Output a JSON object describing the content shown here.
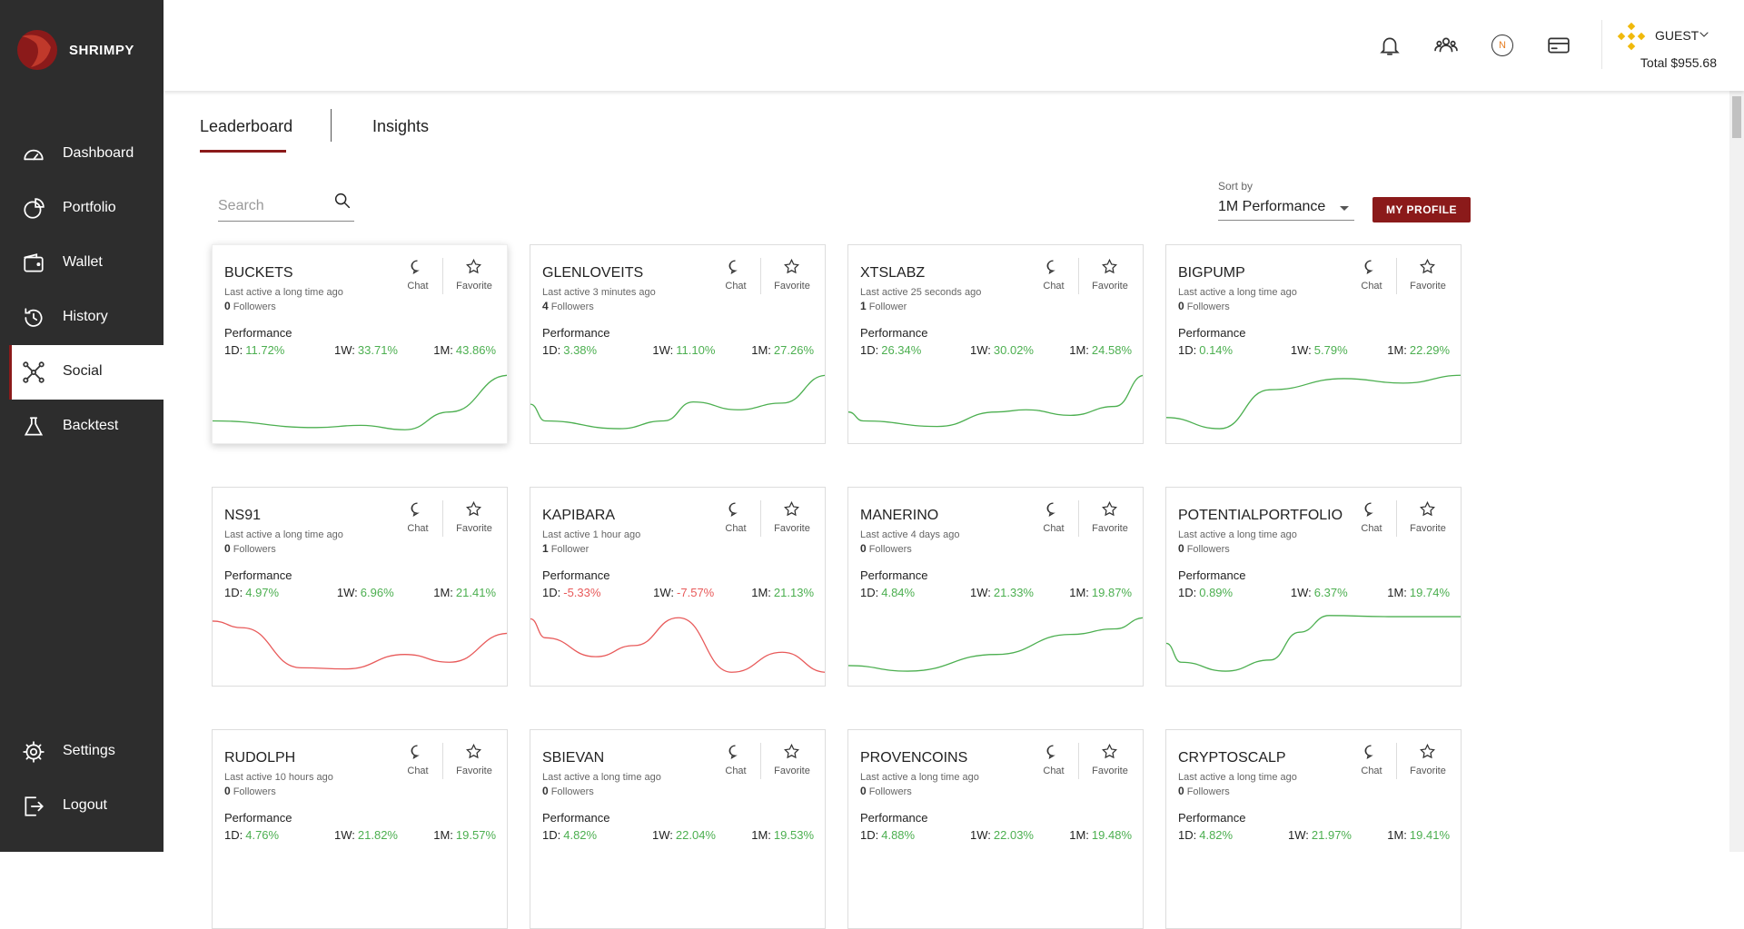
{
  "app": {
    "brand": "SHRIMPY"
  },
  "nav": [
    "Dashboard",
    "Portfolio",
    "Wallet",
    "History",
    "Social",
    "Backtest"
  ],
  "nav_bottom": [
    "Settings",
    "Logout"
  ],
  "header": {
    "avatar_initial": "N",
    "user": "GUEST",
    "total": "Total $955.68"
  },
  "tabs": [
    "Leaderboard",
    "Insights"
  ],
  "search_placeholder": "Search",
  "sort": {
    "label": "Sort by",
    "value": "1M Performance"
  },
  "my_profile": "MY PROFILE",
  "card_labels": {
    "chat": "Chat",
    "favorite": "Favorite",
    "performance": "Performance",
    "d1": "1D:",
    "w1": "1W:",
    "m1": "1M:"
  },
  "cards": [
    {
      "name": "BUCKETS",
      "last_active": "Last active a long time ago",
      "followers": "0",
      "followers_label": "Followers",
      "d1": "11.72%",
      "w1": "33.71%",
      "m1": "43.86%"
    },
    {
      "name": "GLENLOVEITS",
      "last_active": "Last active 3 minutes ago",
      "followers": "4",
      "followers_label": "Followers",
      "d1": "3.38%",
      "w1": "11.10%",
      "m1": "27.26%"
    },
    {
      "name": "XTSLABZ",
      "last_active": "Last active 25 seconds ago",
      "followers": "1",
      "followers_label": "Follower",
      "d1": "26.34%",
      "w1": "30.02%",
      "m1": "24.58%"
    },
    {
      "name": "BIGPUMP",
      "last_active": "Last active a long time ago",
      "followers": "0",
      "followers_label": "Followers",
      "d1": "0.14%",
      "w1": "5.79%",
      "m1": "22.29%"
    },
    {
      "name": "NS91",
      "last_active": "Last active a long time ago",
      "followers": "0",
      "followers_label": "Followers",
      "d1": "4.97%",
      "w1": "6.96%",
      "m1": "21.41%"
    },
    {
      "name": "KAPIBARA",
      "last_active": "Last active 1 hour ago",
      "followers": "1",
      "followers_label": "Follower",
      "d1": "-5.33%",
      "w1": "-7.57%",
      "m1": "21.13%"
    },
    {
      "name": "MANERINO",
      "last_active": "Last active 4 days ago",
      "followers": "0",
      "followers_label": "Followers",
      "d1": "4.84%",
      "w1": "21.33%",
      "m1": "19.87%"
    },
    {
      "name": "POTENTIALPORTFOLIO",
      "last_active": "Last active a long time ago",
      "followers": "0",
      "followers_label": "Followers",
      "d1": "0.89%",
      "w1": "6.37%",
      "m1": "19.74%"
    },
    {
      "name": "RUDOLPH",
      "last_active": "Last active 10 hours ago",
      "followers": "0",
      "followers_label": "Followers",
      "d1": "4.76%",
      "w1": "21.82%",
      "m1": "19.57%"
    },
    {
      "name": "SBIEVAN",
      "last_active": "Last active a long time ago",
      "followers": "0",
      "followers_label": "Followers",
      "d1": "4.82%",
      "w1": "22.04%",
      "m1": "19.53%"
    },
    {
      "name": "PROVENCOINS",
      "last_active": "Last active a long time ago",
      "followers": "0",
      "followers_label": "Followers",
      "d1": "4.88%",
      "w1": "22.03%",
      "m1": "19.48%"
    },
    {
      "name": "CRYPTOSCALP",
      "last_active": "Last active a long time ago",
      "followers": "0",
      "followers_label": "Followers",
      "d1": "4.82%",
      "w1": "21.97%",
      "m1": "19.41%"
    }
  ]
}
